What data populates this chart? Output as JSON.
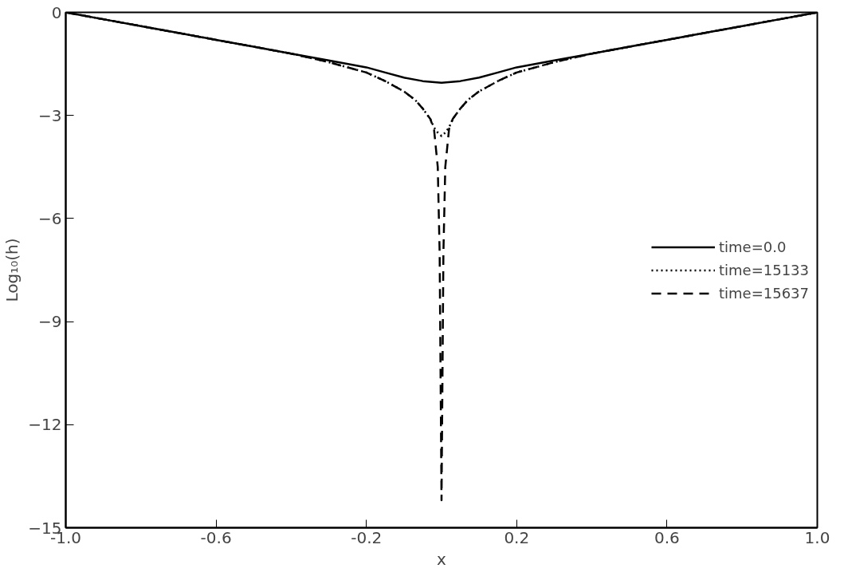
{
  "chart_data": {
    "type": "line",
    "xlabel": "x",
    "ylabel": "Log₁₀(h)",
    "xlim": [
      -1.0,
      1.0
    ],
    "ylim": [
      -15,
      0
    ],
    "xticks": [
      {
        "value": -1.0,
        "label": "-1.0"
      },
      {
        "value": -0.6,
        "label": "-0.6"
      },
      {
        "value": -0.2,
        "label": "-0.2"
      },
      {
        "value": 0.2,
        "label": "0.2"
      },
      {
        "value": 0.6,
        "label": "0.6"
      },
      {
        "value": 1.0,
        "label": "1.0"
      }
    ],
    "yticks": [
      0,
      -3,
      -6,
      -9,
      -12,
      -15
    ],
    "grid": false,
    "legend": "right",
    "marker": "none",
    "series": [
      {
        "name": "time=0.0",
        "color": "#000000",
        "line_style": "solid",
        "x": [
          -1.0,
          -0.9,
          -0.8,
          -0.7,
          -0.6,
          -0.5,
          -0.4,
          -0.3,
          -0.2,
          -0.15,
          -0.1,
          -0.05,
          0.0,
          0.05,
          0.1,
          0.15,
          0.2,
          0.3,
          0.4,
          0.5,
          0.6,
          0.7,
          0.8,
          0.9,
          1.0
        ],
        "values": [
          0.0,
          -0.2,
          -0.4,
          -0.6,
          -0.8,
          -1.0,
          -1.2,
          -1.4,
          -1.6,
          -1.75,
          -1.9,
          -2.0,
          -2.05,
          -2.0,
          -1.9,
          -1.75,
          -1.6,
          -1.4,
          -1.2,
          -1.0,
          -0.8,
          -0.6,
          -0.4,
          -0.2,
          0.0
        ]
      },
      {
        "name": "time=15133",
        "color": "#000000",
        "line_style": "dotted",
        "x": [
          -1.0,
          -0.8,
          -0.6,
          -0.4,
          -0.3,
          -0.2,
          -0.15,
          -0.1,
          -0.07,
          -0.05,
          -0.03,
          -0.02,
          -0.01,
          0.0,
          0.01,
          0.02,
          0.03,
          0.05,
          0.07,
          0.1,
          0.15,
          0.2,
          0.3,
          0.4,
          0.6,
          0.8,
          1.0
        ],
        "values": [
          0.0,
          -0.4,
          -0.8,
          -1.2,
          -1.45,
          -1.75,
          -2.0,
          -2.3,
          -2.55,
          -2.8,
          -3.1,
          -3.35,
          -3.5,
          -3.6,
          -3.5,
          -3.35,
          -3.1,
          -2.8,
          -2.55,
          -2.3,
          -2.0,
          -1.75,
          -1.45,
          -1.2,
          -0.8,
          -0.4,
          0.0
        ]
      },
      {
        "name": "time=15637",
        "color": "#000000",
        "line_style": "dashed",
        "x": [
          -1.0,
          -0.8,
          -0.6,
          -0.4,
          -0.3,
          -0.2,
          -0.15,
          -0.1,
          -0.07,
          -0.05,
          -0.03,
          -0.02,
          -0.01,
          -0.005,
          0.0,
          0.005,
          0.01,
          0.02,
          0.03,
          0.05,
          0.07,
          0.1,
          0.15,
          0.2,
          0.3,
          0.4,
          0.6,
          0.8,
          1.0
        ],
        "values": [
          0.0,
          -0.4,
          -0.8,
          -1.2,
          -1.45,
          -1.75,
          -2.0,
          -2.3,
          -2.55,
          -2.8,
          -3.1,
          -3.4,
          -4.5,
          -7.0,
          -14.2,
          -7.0,
          -4.5,
          -3.4,
          -3.1,
          -2.8,
          -2.55,
          -2.3,
          -2.0,
          -1.75,
          -1.45,
          -1.2,
          -0.8,
          -0.4,
          0.0
        ]
      }
    ]
  }
}
